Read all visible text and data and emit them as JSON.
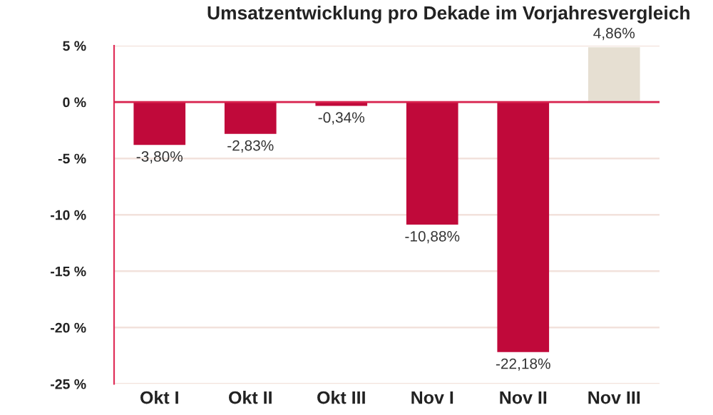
{
  "chart_data": {
    "type": "bar",
    "title": "Umsatzentwicklung pro Dekade im Vorjahresvergleich",
    "categories": [
      "Okt I",
      "Okt II",
      "Okt III",
      "Nov I",
      "Nov II",
      "Nov III"
    ],
    "values": [
      -3.8,
      -2.83,
      -0.34,
      -10.88,
      -22.18,
      4.86
    ],
    "colors": [
      "#c0093a",
      "#c0093a",
      "#c0093a",
      "#c0093a",
      "#c0093a",
      "#e6dfd2"
    ],
    "value_labels": [
      "-3,80%",
      "-2,83%",
      "-0,34%",
      "-10,88%",
      "-22,18%",
      "4,86%"
    ],
    "ylim": [
      -25,
      5
    ],
    "yticks": [
      {
        "value": 5,
        "label": "5 %"
      },
      {
        "value": 0,
        "label": "0 %"
      },
      {
        "value": -5,
        "label": "-5 %"
      },
      {
        "value": -10,
        "label": "-10 %"
      },
      {
        "value": -15,
        "label": "-15 %"
      },
      {
        "value": -20,
        "label": "-20 %"
      },
      {
        "value": -25,
        "label": "-25 %"
      }
    ],
    "ref_lines": [
      {
        "axis": "y",
        "value": 0,
        "label": null,
        "color": "#d8234f"
      }
    ],
    "grid": "y"
  }
}
